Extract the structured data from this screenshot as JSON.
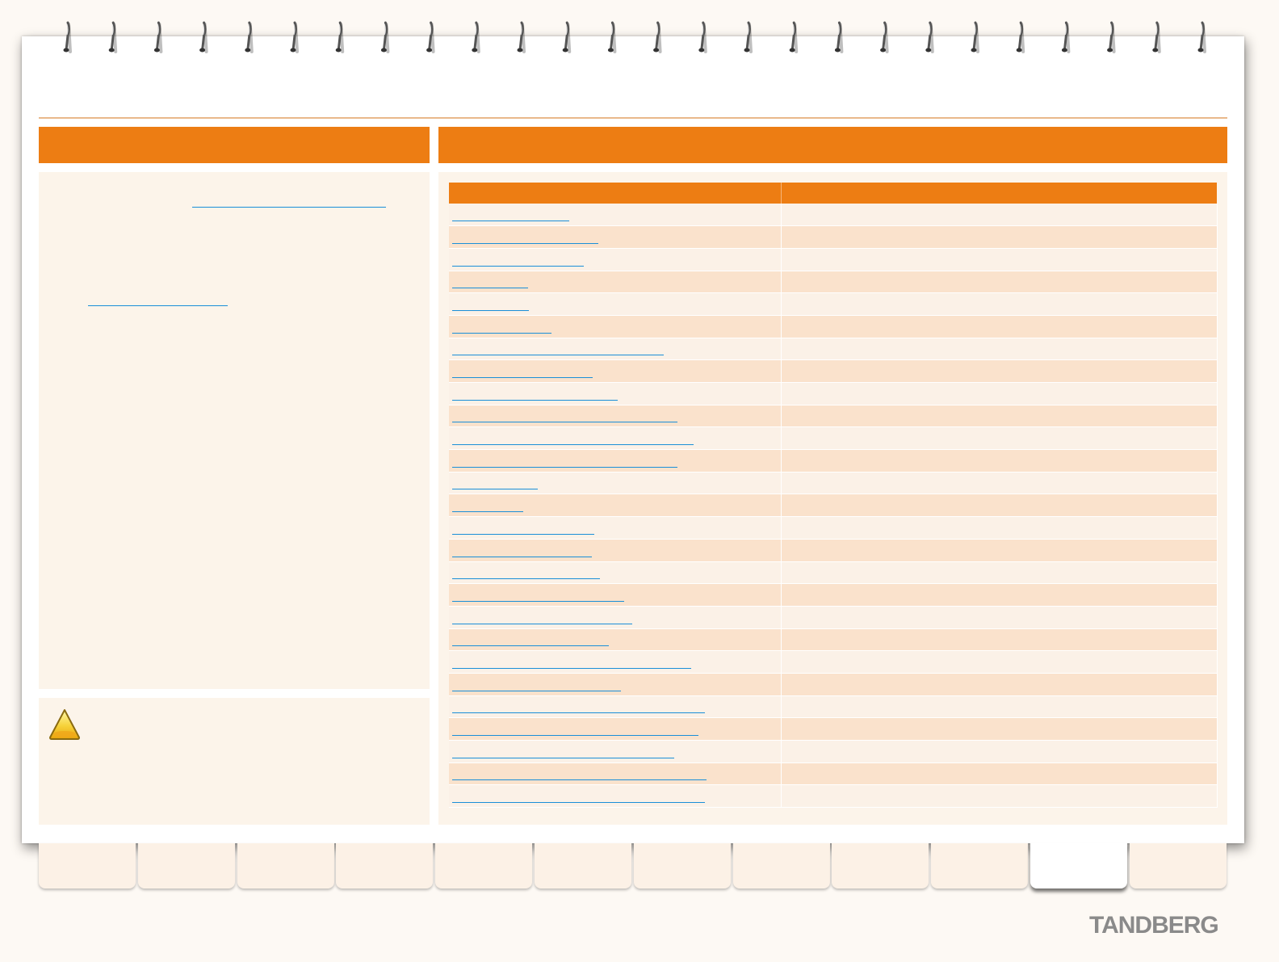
{
  "brand": {
    "logo_text": "TANDBERG"
  },
  "colors": {
    "accent": "#ed7d13",
    "panel": "#fcf4ea",
    "row_light": "#fbf1e7",
    "row_dark": "#fae2cc",
    "link": "#1a8fd8"
  },
  "left_panel": {
    "links": [
      {
        "text": ""
      },
      {
        "text": ""
      }
    ]
  },
  "note": {
    "icon": "warning-icon"
  },
  "table": {
    "columns": [
      "",
      ""
    ],
    "rows": [
      {
        "link_width": 145
      },
      {
        "link_width": 181
      },
      {
        "link_width": 163
      },
      {
        "link_width": 94
      },
      {
        "link_width": 95
      },
      {
        "link_width": 123
      },
      {
        "link_width": 262
      },
      {
        "link_width": 174
      },
      {
        "link_width": 205
      },
      {
        "link_width": 279
      },
      {
        "link_width": 299
      },
      {
        "link_width": 279
      },
      {
        "link_width": 106
      },
      {
        "link_width": 88
      },
      {
        "link_width": 176
      },
      {
        "link_width": 173
      },
      {
        "link_width": 183
      },
      {
        "link_width": 213
      },
      {
        "link_width": 223
      },
      {
        "link_width": 194
      },
      {
        "link_width": 296
      },
      {
        "link_width": 209
      },
      {
        "link_width": 313
      },
      {
        "link_width": 305
      },
      {
        "link_width": 275
      },
      {
        "link_width": 315
      },
      {
        "link_width": 313
      }
    ]
  },
  "tabs": {
    "count": 12,
    "active_index": 10
  }
}
